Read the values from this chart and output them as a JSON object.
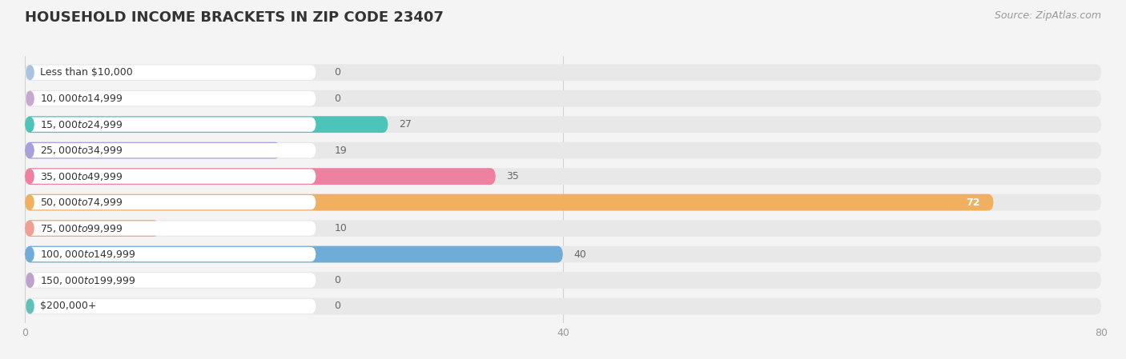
{
  "title": "HOUSEHOLD INCOME BRACKETS IN ZIP CODE 23407",
  "source": "Source: ZipAtlas.com",
  "categories": [
    "Less than $10,000",
    "$10,000 to $14,999",
    "$15,000 to $24,999",
    "$25,000 to $34,999",
    "$35,000 to $49,999",
    "$50,000 to $74,999",
    "$75,000 to $99,999",
    "$100,000 to $149,999",
    "$150,000 to $199,999",
    "$200,000+"
  ],
  "values": [
    0,
    0,
    27,
    19,
    35,
    72,
    10,
    40,
    0,
    0
  ],
  "bar_colors": [
    "#a8c4e0",
    "#c8a8d0",
    "#4dc4b8",
    "#a8a0d8",
    "#f080a0",
    "#f0b060",
    "#f0a090",
    "#70acd8",
    "#c0a0cc",
    "#60c0bc"
  ],
  "background_color": "#f4f4f4",
  "row_bg_color": "#e8e8e8",
  "label_bg_color": "#ffffff",
  "xlim": [
    0,
    80
  ],
  "xticks": [
    0,
    40,
    80
  ],
  "bar_height": 0.64,
  "title_fontsize": 13,
  "label_fontsize": 9.0,
  "value_fontsize": 9.0,
  "source_fontsize": 9.0,
  "value_color_inside": "#ffffff",
  "value_color_outside": "#666666",
  "inside_threshold": 72
}
